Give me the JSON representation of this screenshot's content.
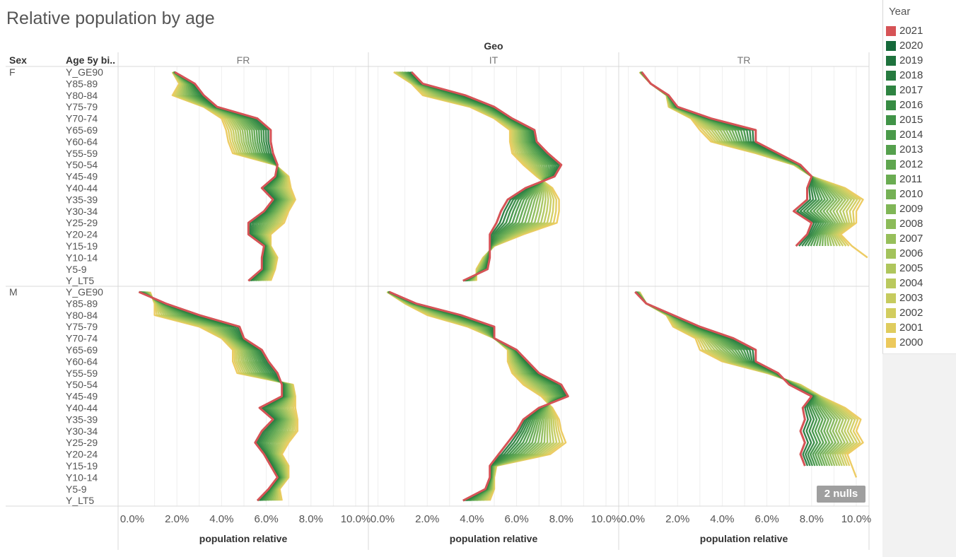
{
  "title": "Relative population by age",
  "header": {
    "column_field": "Geo",
    "sex_header": "Sex",
    "age_header": "Age 5y bi.."
  },
  "legend": {
    "title": "Year",
    "items": [
      {
        "label": "2021",
        "color": "#d65356"
      },
      {
        "label": "2020",
        "color": "#15693a"
      },
      {
        "label": "2019",
        "color": "#1e723d"
      },
      {
        "label": "2018",
        "color": "#267a3f"
      },
      {
        "label": "2017",
        "color": "#2e8341"
      },
      {
        "label": "2016",
        "color": "#368b43"
      },
      {
        "label": "2015",
        "color": "#409347"
      },
      {
        "label": "2014",
        "color": "#4a9a4a"
      },
      {
        "label": "2013",
        "color": "#55a04d"
      },
      {
        "label": "2012",
        "color": "#5fa64f"
      },
      {
        "label": "2011",
        "color": "#6aac52"
      },
      {
        "label": "2010",
        "color": "#75b155"
      },
      {
        "label": "2009",
        "color": "#80b657"
      },
      {
        "label": "2008",
        "color": "#8cbb59"
      },
      {
        "label": "2007",
        "color": "#97bf5b"
      },
      {
        "label": "2006",
        "color": "#a3c35c"
      },
      {
        "label": "2005",
        "color": "#afc65d"
      },
      {
        "label": "2004",
        "color": "#bac95e"
      },
      {
        "label": "2003",
        "color": "#c6cb5f"
      },
      {
        "label": "2002",
        "color": "#d2cd5f"
      },
      {
        "label": "2001",
        "color": "#dfcc5e"
      },
      {
        "label": "2000",
        "color": "#ecc95c"
      }
    ]
  },
  "nulls_badge": "2 nulls",
  "chart_data": {
    "type": "line",
    "geos": [
      "FR",
      "IT",
      "TR"
    ],
    "sexes": [
      "F",
      "M"
    ],
    "age_bins": [
      "Y_GE90",
      "Y85-89",
      "Y80-84",
      "Y75-79",
      "Y70-74",
      "Y65-69",
      "Y60-64",
      "Y55-59",
      "Y50-54",
      "Y45-49",
      "Y40-44",
      "Y35-39",
      "Y30-34",
      "Y25-29",
      "Y20-24",
      "Y15-19",
      "Y10-14",
      "Y5-9",
      "Y_LT5"
    ],
    "xlabel": "population relative",
    "x_ticks": [
      "0.0%",
      "2.0%",
      "4.0%",
      "6.0%",
      "8.0%",
      "10.0%"
    ],
    "xlim": [
      0,
      11
    ],
    "years": [
      "2000",
      "2001",
      "2002",
      "2003",
      "2004",
      "2005",
      "2006",
      "2007",
      "2008",
      "2009",
      "2010",
      "2011",
      "2012",
      "2013",
      "2014",
      "2015",
      "2016",
      "2017",
      "2018",
      "2019",
      "2020",
      "2021"
    ],
    "series_endpoints": {
      "F": {
        "FR": {
          "2000": [
            1.8,
            2.1,
            1.8,
            3.2,
            4.0,
            4.2,
            4.3,
            4.5,
            6.4,
            7.0,
            7.1,
            7.3,
            7.0,
            6.8,
            6.2,
            6.2,
            6.5,
            6.4,
            6.2
          ],
          "2021": [
            1.9,
            2.8,
            3.2,
            3.8,
            5.6,
            6.2,
            6.2,
            6.3,
            6.5,
            6.4,
            5.8,
            6.3,
            5.9,
            5.2,
            5.2,
            5.9,
            5.8,
            5.8,
            5.2
          ]
        },
        "IT": {
          "2000": [
            0.5,
            1.3,
            1.8,
            3.9,
            5.0,
            5.7,
            5.7,
            5.8,
            6.3,
            6.9,
            7.6,
            7.9,
            7.9,
            7.8,
            6.3,
            5.0,
            4.5,
            4.2,
            4.2
          ],
          "2021": [
            1.3,
            1.8,
            3.7,
            5.0,
            5.8,
            6.8,
            6.9,
            7.4,
            8.0,
            7.7,
            6.4,
            5.6,
            5.3,
            5.1,
            4.8,
            4.8,
            4.8,
            4.7,
            3.6
          ]
        },
        "TR": {
          "2000": [
            0.3,
            0.8,
            1.5,
            1.6,
            2.6,
            3.0,
            3.5,
            5.5,
            7.2,
            8.0,
            9.5,
            10.3,
            10.0,
            10.0,
            9.3,
            9.8,
            10.5
          ],
          "2021": [
            0.4,
            0.8,
            1.6,
            2.0,
            3.5,
            5.5,
            5.5,
            6.5,
            7.5,
            8.0,
            7.8,
            7.8,
            7.2,
            8.0,
            7.8,
            7.3
          ]
        }
      },
      "M": {
        "FR": {
          "2000": [
            0.8,
            1.0,
            1.0,
            3.0,
            4.0,
            4.5,
            4.5,
            4.7,
            7.2,
            7.3,
            7.3,
            7.4,
            7.4,
            7.0,
            6.7,
            7.0,
            7.0,
            6.6,
            6.7
          ],
          "2021": [
            0.3,
            1.5,
            3.0,
            4.8,
            5.0,
            5.8,
            6.1,
            6.5,
            6.7,
            6.7,
            5.7,
            6.3,
            5.8,
            5.5,
            5.9,
            6.2,
            6.5,
            6.1,
            5.6
          ]
        },
        "IT": {
          "2000": [
            0.2,
            1.0,
            2.0,
            3.8,
            5.0,
            5.6,
            5.6,
            5.8,
            6.3,
            7.1,
            7.6,
            7.9,
            8.0,
            8.2,
            7.5,
            5.1,
            5.0,
            5.0,
            4.8
          ],
          "2021": [
            0.3,
            1.5,
            3.5,
            5.0,
            5.0,
            6.0,
            6.5,
            7.0,
            8.0,
            8.3,
            7.0,
            6.3,
            6.0,
            5.6,
            5.2,
            4.8,
            4.8,
            4.6,
            3.6
          ]
        },
        "TR": {
          "2000": [
            0.3,
            0.6,
            1.5,
            1.8,
            2.8,
            3.0,
            4.0,
            6.0,
            7.5,
            8.4,
            9.5,
            10.2,
            10.0,
            10.3,
            9.6,
            9.8,
            10.0
          ],
          "2021": [
            0.1,
            0.6,
            1.8,
            3.0,
            4.5,
            5.5,
            5.5,
            6.5,
            7.0,
            8.0,
            7.6,
            7.7,
            7.5,
            7.7,
            7.5,
            7.7
          ]
        }
      }
    }
  }
}
